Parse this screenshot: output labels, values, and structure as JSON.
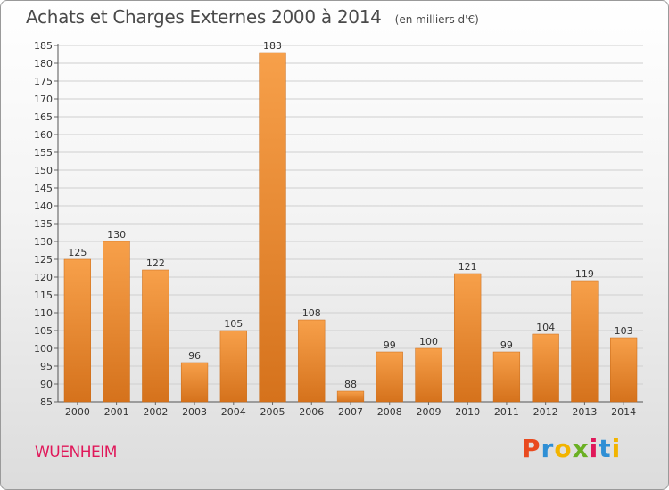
{
  "header": {
    "title": "Achats et Charges Externes 2000 à 2014",
    "unit": "(en milliers d'€)"
  },
  "footer": {
    "city": "WUENHEIM",
    "logo_text": "Proxiti"
  },
  "colors": {
    "bar_light": "#f7a04a",
    "bar_dark": "#d5721c",
    "city": "#e0185a",
    "grid": "#cfcfcf"
  },
  "chart_data": {
    "type": "bar",
    "categories": [
      "2000",
      "2001",
      "2002",
      "2003",
      "2004",
      "2005",
      "2006",
      "2007",
      "2008",
      "2009",
      "2010",
      "2011",
      "2012",
      "2013",
      "2014"
    ],
    "values": [
      125,
      130,
      122,
      96,
      105,
      183,
      108,
      88,
      99,
      100,
      121,
      99,
      104,
      119,
      103
    ],
    "title": "Achats et Charges Externes 2000 à 2014",
    "subtitle": "(en milliers d'€)",
    "xlabel": "",
    "ylabel": "",
    "ylim": [
      85,
      185
    ],
    "yticks": [
      85,
      90,
      95,
      100,
      105,
      110,
      115,
      120,
      125,
      130,
      135,
      140,
      145,
      150,
      155,
      160,
      165,
      170,
      175,
      180,
      185
    ],
    "grid": true,
    "data_labels": true
  }
}
